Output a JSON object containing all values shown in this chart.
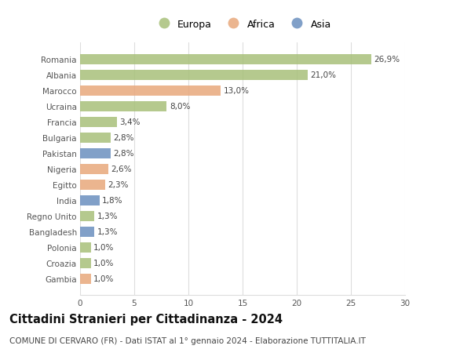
{
  "categories": [
    "Romania",
    "Albania",
    "Marocco",
    "Ucraina",
    "Francia",
    "Bulgaria",
    "Pakistan",
    "Nigeria",
    "Egitto",
    "India",
    "Regno Unito",
    "Bangladesh",
    "Polonia",
    "Croazia",
    "Gambia"
  ],
  "values": [
    26.9,
    21.0,
    13.0,
    8.0,
    3.4,
    2.8,
    2.8,
    2.6,
    2.3,
    1.8,
    1.3,
    1.3,
    1.0,
    1.0,
    1.0
  ],
  "labels": [
    "26,9%",
    "21,0%",
    "13,0%",
    "8,0%",
    "3,4%",
    "2,8%",
    "2,8%",
    "2,6%",
    "2,3%",
    "1,8%",
    "1,3%",
    "1,3%",
    "1,0%",
    "1,0%",
    "1,0%"
  ],
  "continents": [
    "Europa",
    "Europa",
    "Africa",
    "Europa",
    "Europa",
    "Europa",
    "Asia",
    "Africa",
    "Africa",
    "Asia",
    "Europa",
    "Asia",
    "Europa",
    "Europa",
    "Africa"
  ],
  "colors": {
    "Europa": "#a8c07a",
    "Africa": "#e8a87c",
    "Asia": "#6b8fbf"
  },
  "legend_labels": [
    "Europa",
    "Africa",
    "Asia"
  ],
  "legend_colors": [
    "#a8c07a",
    "#e8a87c",
    "#6b8fbf"
  ],
  "title": "Cittadini Stranieri per Cittadinanza - 2024",
  "subtitle": "COMUNE DI CERVARO (FR) - Dati ISTAT al 1° gennaio 2024 - Elaborazione TUTTITALIA.IT",
  "xlim": [
    0,
    30
  ],
  "xticks": [
    0,
    5,
    10,
    15,
    20,
    25,
    30
  ],
  "background_color": "#ffffff",
  "grid_color": "#dddddd",
  "title_fontsize": 10.5,
  "subtitle_fontsize": 7.5,
  "label_fontsize": 7.5,
  "tick_fontsize": 7.5,
  "legend_fontsize": 9
}
